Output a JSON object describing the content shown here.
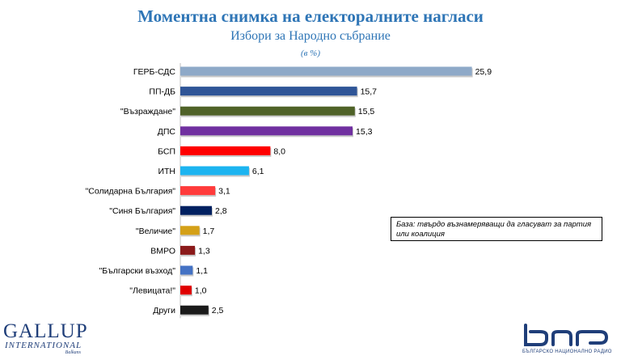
{
  "title": "Моментна снимка на електоралните нагласи",
  "subtitle": "Избори за Народно събрание",
  "unit": "(в %)",
  "note": "База: твърдо възнамеряващи да гласуват за партия или коалиция",
  "gallup": {
    "main": "GALLUP",
    "sub": "INTERNATIONAL",
    "small": "Balkans"
  },
  "bnr": {
    "sub": "БЪЛГАРСКО НАЦИОНАЛНО РАДИО"
  },
  "chart_data": {
    "type": "bar",
    "orientation": "horizontal",
    "title": "Моментна снимка на електоралните нагласи",
    "subtitle": "Избори за Народно събрание",
    "unit": "(в %)",
    "categories": [
      "ГЕРБ-СДС",
      "ПП-ДБ",
      "\"Възраждане\"",
      "ДПС",
      "БСП",
      "ИТН",
      "\"Солидарна България\"",
      "\"Синя България\"",
      "\"Величие\"",
      "ВМРО",
      "\"Български възход\"",
      "\"Левицата!\"",
      "Други"
    ],
    "values": [
      25.9,
      15.7,
      15.5,
      15.3,
      8.0,
      6.1,
      3.1,
      2.8,
      1.7,
      1.3,
      1.1,
      1.0,
      2.5
    ],
    "value_labels": [
      "25,9",
      "15,7",
      "15,5",
      "15,3",
      "8,0",
      "6,1",
      "3,1",
      "2,8",
      "1,7",
      "1,3",
      "1,1",
      "1,0",
      "2,5"
    ],
    "colors": [
      "#8ea9c8",
      "#2f5597",
      "#4f6228",
      "#7030a0",
      "#ff0000",
      "#1cb4f0",
      "#ff3b3b",
      "#002060",
      "#d4a017",
      "#8b1a1a",
      "#4472c4",
      "#e00000",
      "#1a1a1a"
    ],
    "xlim": [
      0,
      26
    ],
    "grid": false,
    "legend": "none"
  }
}
